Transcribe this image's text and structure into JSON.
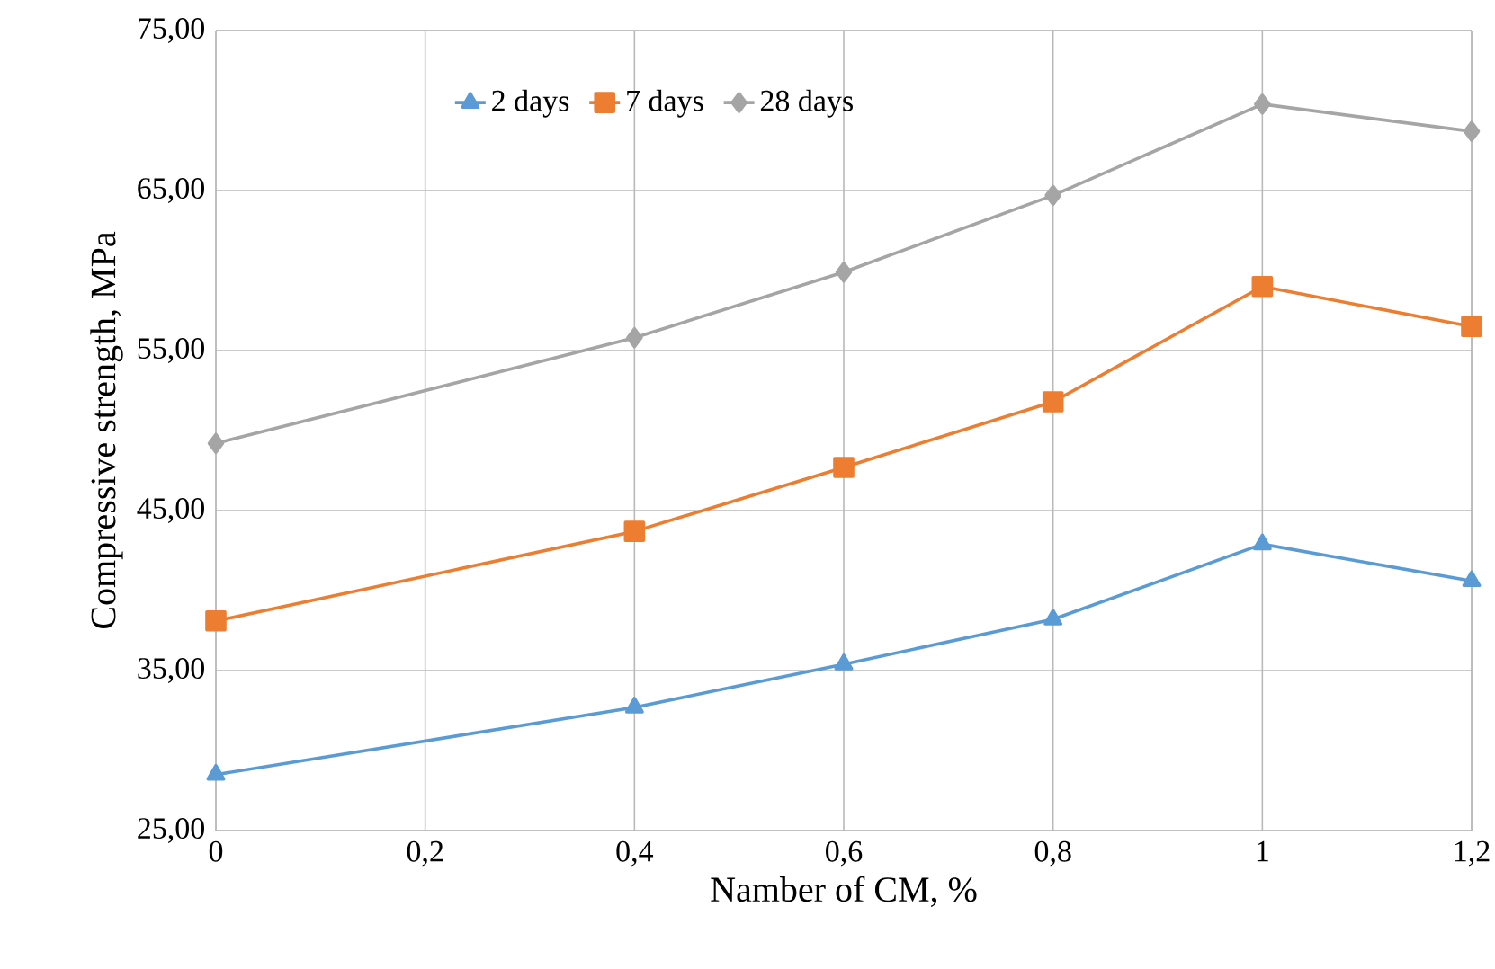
{
  "chart_data": {
    "type": "line",
    "xlabel": "Namber of CM, %",
    "ylabel": "Compressive strength, MPa",
    "x": [
      0,
      0.4,
      0.6,
      0.8,
      1,
      1.2
    ],
    "series": [
      {
        "name": "2 days",
        "color": "#5b9bd5",
        "marker": "triangle",
        "values": [
          28.5,
          32.7,
          35.4,
          38.2,
          42.9,
          40.6
        ]
      },
      {
        "name": "7 days",
        "color": "#ed7d31",
        "marker": "square",
        "values": [
          38.1,
          43.7,
          47.7,
          51.8,
          59.0,
          56.5
        ]
      },
      {
        "name": "28 days",
        "color": "#a5a5a5",
        "marker": "diamond",
        "values": [
          49.2,
          55.8,
          59.9,
          64.7,
          70.4,
          68.7
        ]
      }
    ],
    "xlim": [
      0,
      1.2
    ],
    "xticks": [
      0,
      {
        "value": 0.2,
        "label": "0,2"
      },
      {
        "value": 0.4,
        "label": "0,4"
      },
      {
        "value": 0.6,
        "label": "0,6"
      },
      {
        "value": 0.8,
        "label": "0,8"
      },
      1,
      {
        "value": 1.2,
        "label": "1,2"
      }
    ],
    "ylim": [
      25,
      75
    ],
    "yticks": [
      {
        "value": 25,
        "label": "25,00"
      },
      {
        "value": 35,
        "label": "35,00"
      },
      {
        "value": 45,
        "label": "45,00"
      },
      {
        "value": 55,
        "label": "55,00"
      },
      {
        "value": 65,
        "label": "65,00"
      },
      {
        "value": 75,
        "label": "75,00"
      }
    ],
    "grid": true,
    "legend": "top",
    "line_style": "solid"
  }
}
